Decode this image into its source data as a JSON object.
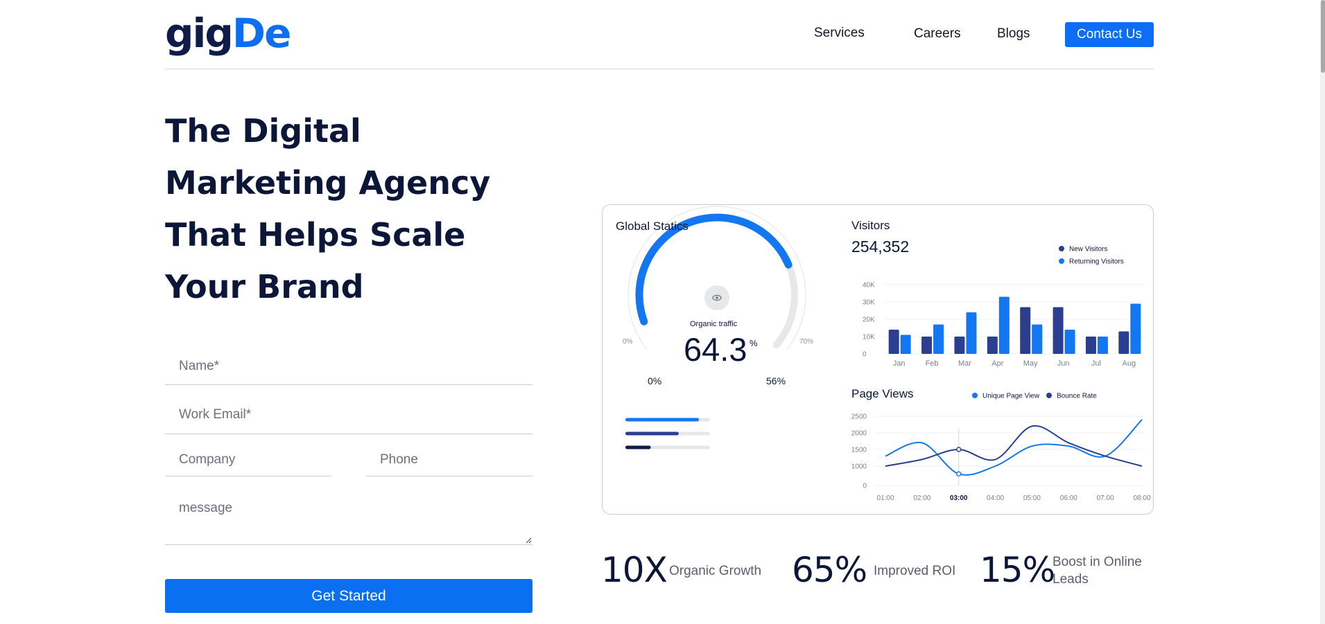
{
  "header": {
    "logo_part1": "gig",
    "logo_part2": "De",
    "nav": [
      "Services",
      "Careers",
      "Blogs"
    ],
    "cta": "Contact Us"
  },
  "hero": {
    "headline": [
      "The Digital",
      "Marketing Agency",
      "That Helps Scale",
      "Your Brand"
    ]
  },
  "form": {
    "name_placeholder": "Name*",
    "email_placeholder": "Work Email*",
    "company_placeholder": "Company",
    "phone_placeholder": "Phone",
    "message_placeholder": "message",
    "submit": "Get Started"
  },
  "dashboard": {
    "global": {
      "title": "Global Statics",
      "gauge_label": "Organic traffic",
      "gauge_value": "64.3",
      "gauge_unit": "%",
      "gauge_fill": 0.643,
      "scale_left": "0%",
      "scale_right": "70%",
      "range_min": "0%",
      "range_max": "56%",
      "eye_icon": "eye-icon",
      "progress": [
        {
          "fill": 0.87,
          "color": "#1277f0"
        },
        {
          "fill": 0.63,
          "color": "#2a3f8f"
        },
        {
          "fill": 0.3,
          "color": "#0f1a45"
        }
      ]
    },
    "visitors": {
      "title": "Visitors",
      "total": "254,352"
    },
    "page_views_title": "Page Views",
    "colors": {
      "new": "#2a3f8f",
      "returning": "#1277f0",
      "unique": "#1277f0",
      "bounce": "#2a3f8f"
    }
  },
  "chart_data": [
    {
      "type": "bar",
      "title": "Visitors",
      "categories": [
        "Jan",
        "Feb",
        "Mar",
        "Apr",
        "May",
        "Jun",
        "Jul",
        "Aug"
      ],
      "series": [
        {
          "name": "New Visitors",
          "values": [
            14000,
            10000,
            10000,
            10000,
            27000,
            27000,
            10000,
            13000
          ]
        },
        {
          "name": "Returning Visitors",
          "values": [
            11000,
            17000,
            24000,
            33000,
            17000,
            14000,
            10000,
            29000
          ]
        }
      ],
      "yticks": [
        "40K",
        "30K",
        "20K",
        "10K",
        "0"
      ],
      "ylim": [
        0,
        40000
      ],
      "grid": true,
      "legend": "top-right"
    },
    {
      "type": "line",
      "title": "Page Views",
      "x": [
        "01:00",
        "02:00",
        "03:00",
        "04:00",
        "05:00",
        "06:00",
        "07:00",
        "08:00"
      ],
      "series": [
        {
          "name": "Unique Page View",
          "values": [
            1300,
            1700,
            600,
            1000,
            1600,
            1600,
            1300,
            2400
          ]
        },
        {
          "name": "Bounce Rate",
          "values": [
            1000,
            1200,
            1500,
            1200,
            2200,
            1700,
            1300,
            1000
          ]
        }
      ],
      "yticks": [
        "2500",
        "2000",
        "1500",
        "1000",
        "0"
      ],
      "ylim": [
        0,
        2500
      ],
      "highlighted_x": "03:00",
      "grid": true,
      "legend": "top-right"
    }
  ],
  "stats": [
    {
      "value": "10X",
      "label": "Organic Growth"
    },
    {
      "value": "65%",
      "label": "Improved ROI"
    },
    {
      "value": "15%",
      "label": "Boost in Online",
      "label2": "Leads"
    }
  ]
}
